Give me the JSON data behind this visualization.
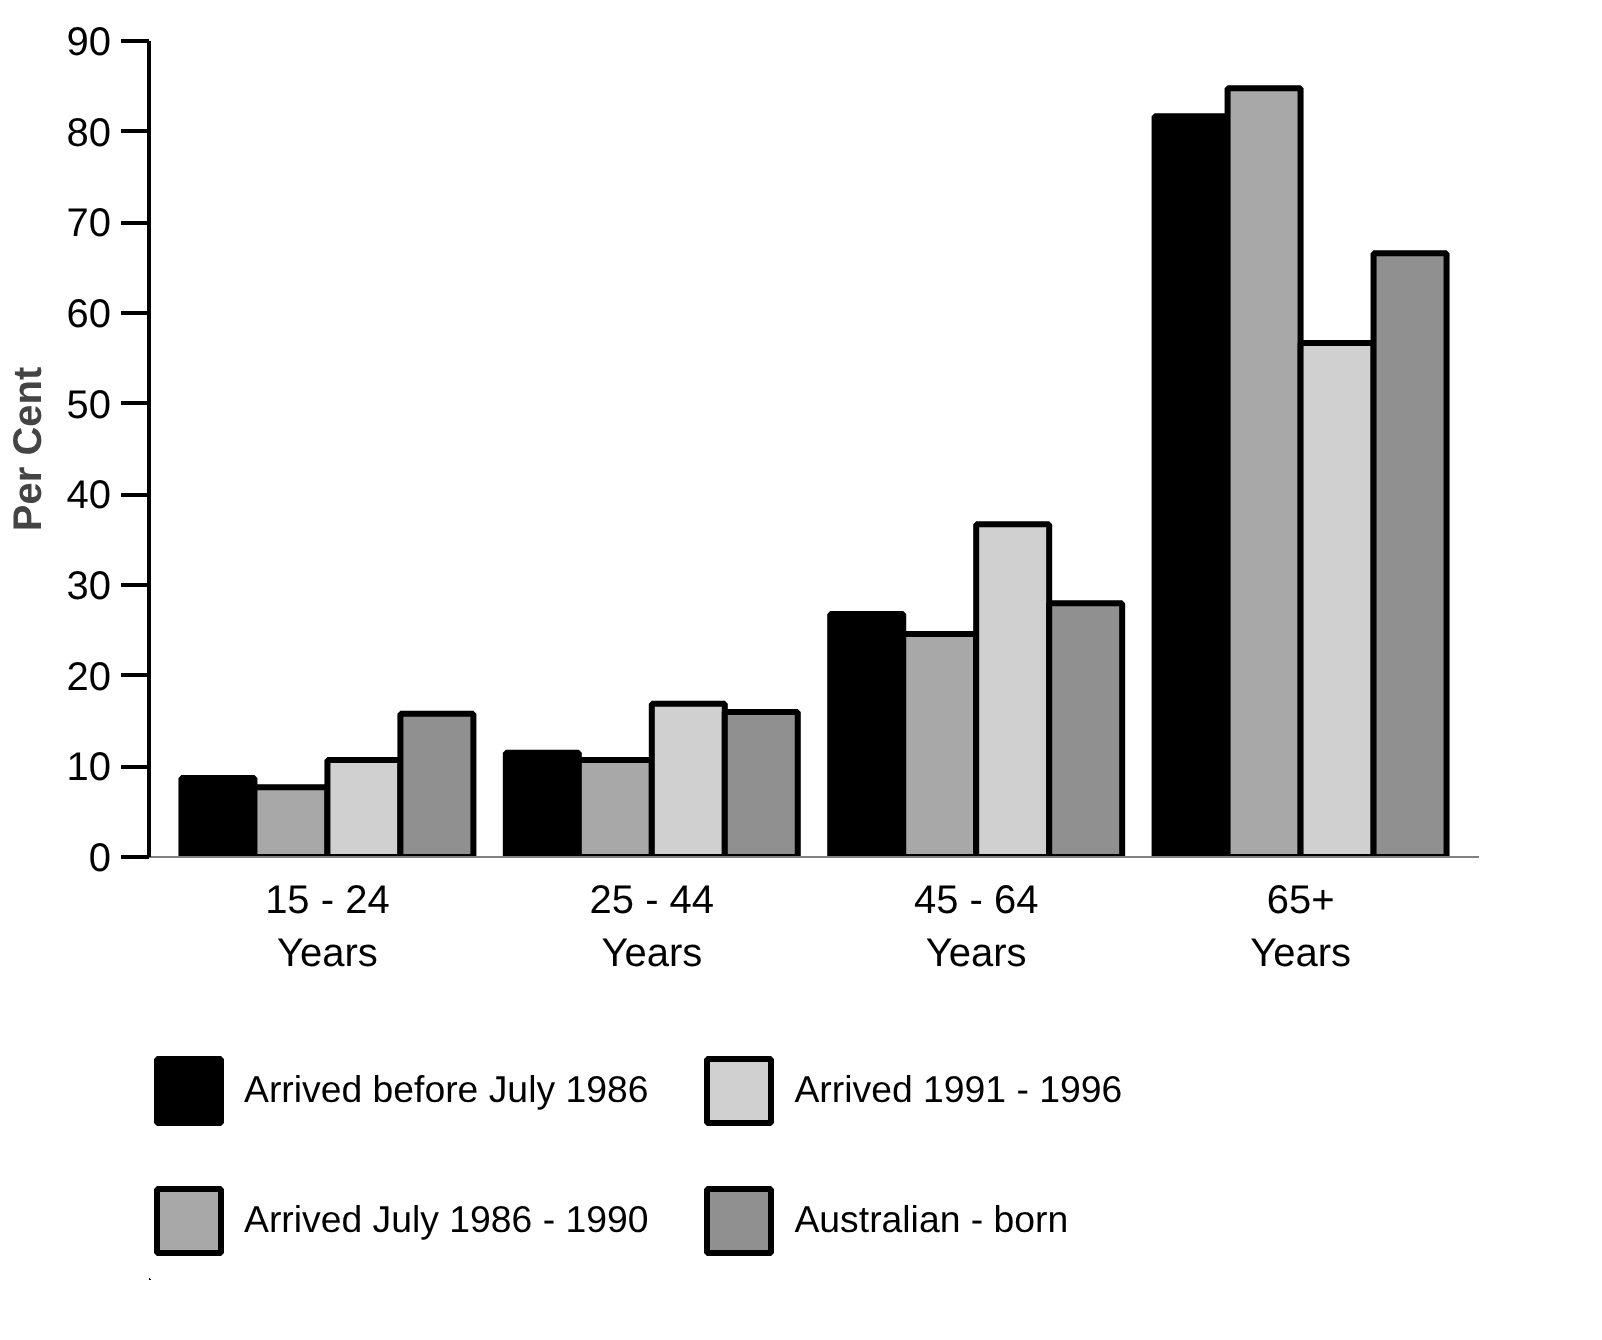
{
  "chart_data": {
    "type": "bar",
    "ylabel": "Per Cent",
    "categories": [
      "15 - 24\nYears",
      "25 - 44\nYears",
      "45 - 64\nYears",
      "65+\nYears"
    ],
    "series": [
      {
        "name": "Arrived before July 1986",
        "color": "#000000",
        "values": [
          8.7,
          11.5,
          26.8,
          81.7
        ]
      },
      {
        "name": "Arrived July 1986 - 1990",
        "color": "#a8a8a8",
        "values": [
          7.7,
          10.7,
          24.6,
          84.8
        ]
      },
      {
        "name": "Arrived 1991 - 1996",
        "color": "#d0d0d0",
        "values": [
          10.7,
          16.9,
          36.7,
          56.7
        ]
      },
      {
        "name": "Australian - born",
        "color": "#909090",
        "values": [
          15.8,
          16.0,
          28.0,
          66.6
        ]
      }
    ],
    "ylim": [
      0,
      90
    ],
    "yticks": [
      0,
      10,
      20,
      30,
      40,
      50,
      60,
      70,
      80,
      90
    ],
    "grid": false,
    "legend": "bottom"
  }
}
